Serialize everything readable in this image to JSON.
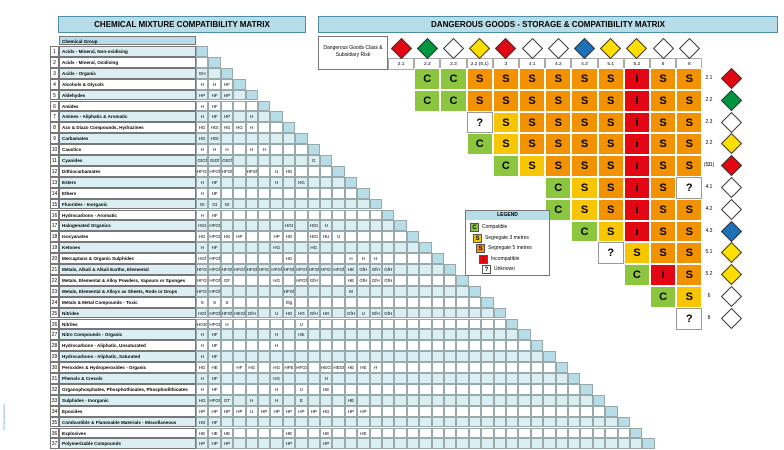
{
  "left_title": "CHEMICAL MIXTURE COMPATIBILITY MATRIX",
  "right_title": "DANGEROUS GOODS - STORAGE & COMPATIBILITY MATRIX",
  "group_header": "Chemical Group",
  "dg_header": "Dangerous Goods Class & Subsidiary Risk",
  "side_text": "HS Storage Adviser",
  "groups": [
    "Acids - Mineral, Non-oxidising",
    "Acids - Mineral, Oxidising",
    "Acids - Organic",
    "Alcohols & Glycols",
    "Aldehydes",
    "Amides",
    "Amines - Aliphatic & Aromatic",
    "Azo & Diazo Compounds, Hydrazines",
    "Carbamates",
    "Caustics",
    "Cyanides",
    "Dithiocarbamates",
    "Esters",
    "Ethers",
    "Fluorides - Inorganic",
    "Hydrocarbons - Aromatic",
    "Halogenated Organics",
    "Isocyanates",
    "Ketones",
    "Mercaptans & Organic Sulphides",
    "Metals, Alkali & Alkali Earths, Elemental",
    "Metals, Elemental & Alloy Powders, Vapours or Sponges",
    "Metals, Elemental & Alloys as Sheets, Rods or Drops",
    "Metals & Metal Compounds - Toxic",
    "Nitrides",
    "Nitriles",
    "Nitro Compounds - Organic",
    "Hydrocarbons - Aliphatic, Unsaturated",
    "Hydrocarbons - Aliphatic, Saturated",
    "Peroxides & Hydroperoxides - Organic",
    "Phenols & Cresols",
    "Organophosphates, Phosphothioates, Phosphodithioates",
    "Sulphides - Inorganic",
    "Epoxides",
    "Combustible & Flammable Materials - Miscellaneous",
    "Explosives",
    "Polymerizable Compounds"
  ],
  "left_matrix": [
    [],
    [],
    [
      "GH"
    ],
    [
      "H",
      "H",
      "HF"
    ],
    [
      "HP",
      "HF",
      "HP"
    ],
    [
      "H",
      "HF",
      ""
    ],
    [
      "H",
      "HF",
      "HP",
      "",
      "H"
    ],
    [
      "HG",
      "HGt",
      "HG",
      "HG",
      "H"
    ],
    [
      "HG",
      "HGt",
      "",
      "",
      "",
      ""
    ],
    [
      "H",
      "H",
      "H",
      "",
      "H",
      "H"
    ],
    [
      "GtGf",
      "GtGf",
      "GtGf",
      "",
      "",
      "",
      "",
      "",
      "",
      "G"
    ],
    [
      "HFGf",
      "HFGf",
      "HFGf",
      "",
      "HFGf",
      "",
      "U",
      "HG"
    ],
    [
      "H",
      "HF",
      "",
      "",
      "",
      "",
      "H",
      "",
      "HG"
    ],
    [
      "H",
      "HF"
    ],
    [
      "Gt",
      "Gt",
      "Gt"
    ],
    [
      "H",
      "HF"
    ],
    [
      "HGt",
      "HFGt",
      "",
      "",
      "",
      "",
      "",
      "HGt",
      "",
      "HGt",
      "H"
    ],
    [
      "HG",
      "HFGt",
      "HG",
      "HP",
      "",
      "",
      "HP",
      "HG",
      "",
      "HGt",
      "HU",
      "U"
    ],
    [
      "H",
      "HF",
      "",
      "",
      "",
      "",
      "HG",
      "",
      "",
      "HG"
    ],
    [
      "HGf",
      "HFGf",
      "",
      "",
      "",
      "",
      "",
      "HG",
      "",
      "",
      "",
      "",
      "H",
      "H",
      "H"
    ],
    [
      "HFGf",
      "HFGf",
      "HFGf",
      "HFGf",
      "HFGf",
      "HFGf",
      "HFGf",
      "HFGf",
      "HFGf",
      "HFGf",
      "HFGf",
      "HFGf",
      "HE",
      "GfH",
      "GfH",
      "GfH"
    ],
    [
      "HFGf",
      "HFGf",
      "GF",
      "",
      "",
      "",
      "HG",
      "",
      "HFGf",
      "GfH",
      "",
      "",
      "HE",
      "GfH",
      "GfH",
      "GfH"
    ],
    [
      "HFGf",
      "HFGf",
      "",
      "",
      "",
      "",
      "",
      "HFGf",
      "",
      "",
      "",
      "",
      "M"
    ],
    [
      "S",
      "S",
      "S",
      "",
      "",
      "",
      "",
      "hfg"
    ],
    [
      "HGf",
      "HFGf",
      "HFGf",
      "HEGf",
      "GfH",
      "",
      "U",
      "HG",
      "HG",
      "GfH",
      "HG",
      "",
      "GfH",
      "U",
      "GfH",
      "GfH"
    ],
    [
      "HGtGf",
      "HFGt",
      "H",
      "",
      "",
      "",
      "",
      "",
      "U"
    ],
    [
      "H",
      "HF",
      "",
      "",
      "",
      "",
      "H",
      "",
      "HE"
    ],
    [
      "H",
      "HF",
      "",
      "",
      "",
      "",
      "H"
    ],
    [
      "H",
      "HF"
    ],
    [
      "HG",
      "HE",
      "",
      "HF",
      "HG",
      "",
      "HG",
      "HFE",
      "HFGt",
      "",
      "HEGt",
      "HEGt",
      "HE",
      "HE",
      "H"
    ],
    [
      "H",
      "HF",
      "",
      "",
      "",
      "",
      "HG",
      "",
      "",
      "",
      "H"
    ],
    [
      "H",
      "HF",
      "",
      "",
      "",
      "",
      "H",
      "",
      "U",
      "",
      "HE"
    ],
    [
      "HG",
      "HFGt",
      "GT",
      "",
      "H",
      "",
      "H",
      "",
      "E",
      "",
      "",
      "",
      "HE"
    ],
    [
      "HP",
      "HP",
      "HP",
      "HP",
      "U",
      "HP",
      "HP",
      "HP",
      "HP",
      "HP",
      "HG",
      "",
      "HP",
      "HP"
    ],
    [
      "HG",
      "HF",
      "",
      "",
      "",
      "",
      "",
      "",
      "",
      "",
      "",
      "",
      "",
      "",
      ""
    ],
    [
      "HE",
      "HE",
      "HE",
      "",
      "",
      "",
      "",
      "HE",
      "",
      "",
      "HE",
      "",
      "",
      "HE"
    ],
    [
      "HP",
      "HP",
      "HP",
      "",
      "",
      "",
      "",
      "HP",
      "",
      "",
      "HP"
    ]
  ],
  "dg_classes": [
    "2.1",
    "2.2",
    "2.3",
    "2.2 (5.1)",
    "3",
    "4.1",
    "4.2",
    "4.3",
    "5.1",
    "5.2",
    "6",
    "8"
  ],
  "row_labels": [
    "2.1",
    "2.2",
    "2.3",
    "2.2 (5.1)",
    "3",
    "4.1",
    "4.2",
    "4.3",
    "5.1",
    "5.2",
    "6",
    "8"
  ],
  "dg_matrix": [
    [
      "C",
      "C",
      "S",
      "S",
      "S",
      "S",
      "S",
      "S",
      "I",
      "S",
      "S"
    ],
    [
      "C",
      "C",
      "S",
      "S",
      "S",
      "S",
      "S",
      "S",
      "I",
      "S",
      "S"
    ],
    [
      "?",
      "S",
      "S",
      "S",
      "S",
      "S",
      "I",
      "S",
      "S"
    ],
    [
      "C",
      "S",
      "S",
      "S",
      "S",
      "S",
      "I",
      "S",
      "S"
    ],
    [
      "C",
      "S",
      "S",
      "S",
      "S",
      "I",
      "S",
      "S"
    ],
    [
      "C",
      "S",
      "S",
      "I",
      "S",
      "?"
    ],
    [
      "C",
      "S",
      "S",
      "I",
      "S",
      "S"
    ],
    [
      "C",
      "S",
      "I",
      "S",
      "S"
    ],
    [
      "?",
      "S",
      "S",
      "S"
    ],
    [
      "C",
      "I",
      "S"
    ],
    [
      "C",
      "S"
    ],
    [
      "?"
    ]
  ],
  "legend": {
    "title": "LEGEND",
    "items": [
      {
        "code": "C",
        "label": "Compatible",
        "color": "#8cc63f"
      },
      {
        "code": "S",
        "label": "Segregate 3 metres",
        "color": "#f7c600"
      },
      {
        "code": "S",
        "label": "Segregate 5 metres",
        "color": "#f39200"
      },
      {
        "code": "I",
        "label": "Incompatible",
        "color": "#e30613"
      },
      {
        "code": "?",
        "label": "Unknown",
        "color": "#ffffff"
      }
    ]
  },
  "colors": {
    "compatible": "#8cc63f",
    "seg3": "#f7c600",
    "seg5": "#f39200",
    "incompatible": "#e30613",
    "header": "#b7dde8",
    "shade": "#dbeef4"
  },
  "dg_icons": [
    "red-flame",
    "green-gas",
    "white-skull",
    "yellow-oxidizer",
    "red-flame",
    "red-white-stripes",
    "red-white-spont",
    "blue-water",
    "yellow-oxidizer",
    "red-yellow-peroxide",
    "white-skull",
    "black-white-corrosive"
  ]
}
